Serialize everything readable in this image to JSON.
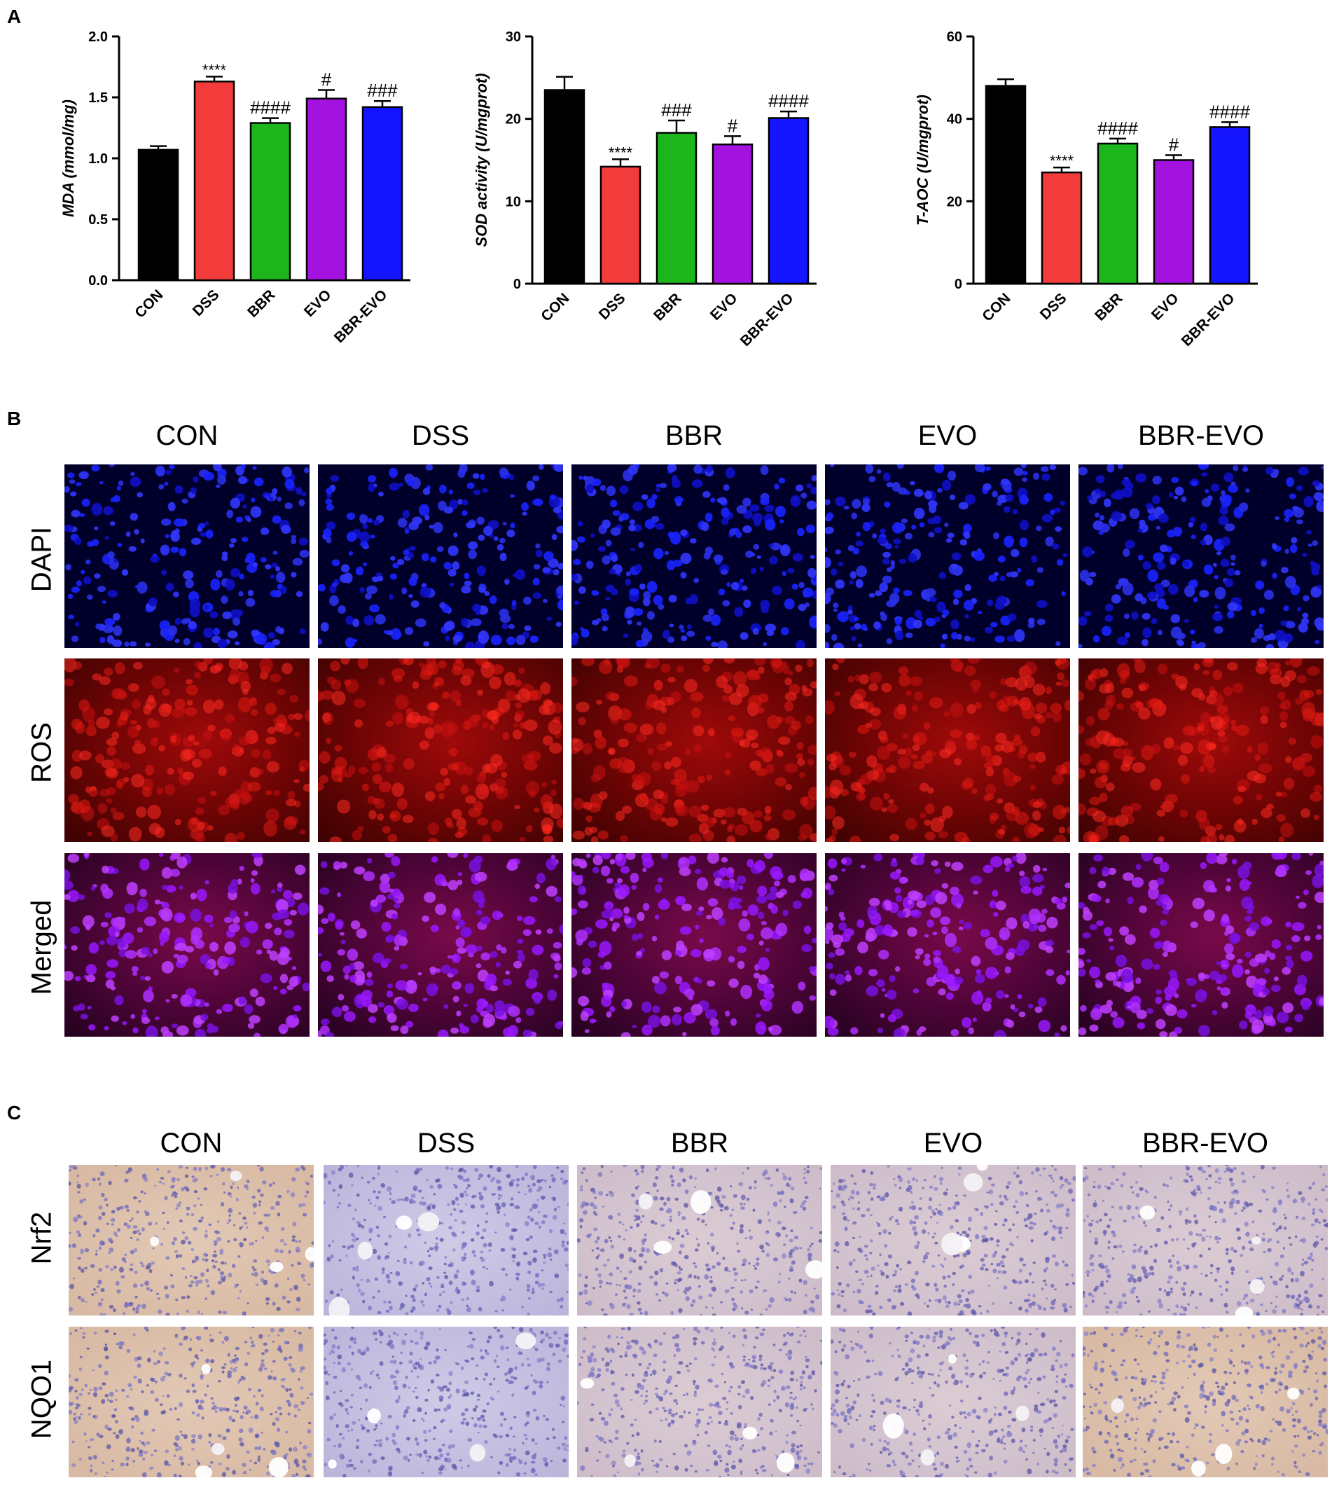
{
  "panels": {
    "a": "A",
    "b": "B",
    "c": "C"
  },
  "chart_data": [
    {
      "type": "bar",
      "categories": [
        "CON",
        "DSS",
        "BBR",
        "EVO",
        "BBR-EVO"
      ],
      "values": [
        1.07,
        1.63,
        1.29,
        1.49,
        1.42
      ],
      "errors": [
        0.03,
        0.04,
        0.04,
        0.07,
        0.05
      ],
      "annotations": [
        "",
        "****",
        "####",
        "#",
        "###"
      ],
      "colors": [
        "#000000",
        "#f23c3c",
        "#1cb51c",
        "#a412e0",
        "#1414ff"
      ],
      "ylabel": "MDA (mmol/mg)",
      "ylim": [
        0,
        2.0
      ],
      "yticks": [
        "0.0",
        "0.5",
        "1.0",
        "1.5",
        "2.0"
      ]
    },
    {
      "type": "bar",
      "categories": [
        "CON",
        "DSS",
        "BBR",
        "EVO",
        "BBR-EVO"
      ],
      "values": [
        23.5,
        14.2,
        18.3,
        16.9,
        20.1
      ],
      "errors": [
        1.6,
        0.9,
        1.5,
        1.0,
        0.8
      ],
      "annotations": [
        "",
        "****",
        "###",
        "#",
        "####"
      ],
      "colors": [
        "#000000",
        "#f23c3c",
        "#1cb51c",
        "#a412e0",
        "#1414ff"
      ],
      "ylabel": "SOD activity (U/mgprot)",
      "ylim": [
        0,
        30
      ],
      "yticks": [
        "0",
        "10",
        "20",
        "30"
      ]
    },
    {
      "type": "bar",
      "categories": [
        "CON",
        "DSS",
        "BBR",
        "EVO",
        "BBR-EVO"
      ],
      "values": [
        48.0,
        27.0,
        34.0,
        30.0,
        38.0
      ],
      "errors": [
        1.6,
        1.2,
        1.2,
        1.2,
        1.2
      ],
      "annotations": [
        "",
        "****",
        "####",
        "#",
        "####"
      ],
      "colors": [
        "#000000",
        "#f23c3c",
        "#1cb51c",
        "#a412e0",
        "#1414ff"
      ],
      "ylabel": "T-AOC (U/mgprot)",
      "ylim": [
        0,
        60
      ],
      "yticks": [
        "0",
        "20",
        "40",
        "60"
      ]
    }
  ],
  "panel_b": {
    "columns": [
      "CON",
      "DSS",
      "BBR",
      "EVO",
      "BBR-EVO"
    ],
    "rows": [
      "DAPI",
      "ROS",
      "Merged"
    ]
  },
  "panel_c": {
    "columns": [
      "CON",
      "DSS",
      "BBR",
      "EVO",
      "BBR-EVO"
    ],
    "rows": [
      "Nrf2",
      "NQO1"
    ]
  }
}
